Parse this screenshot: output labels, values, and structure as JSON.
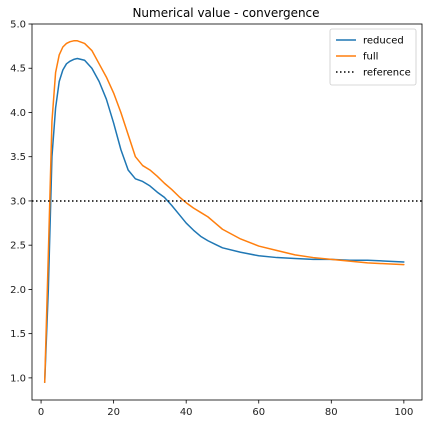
{
  "chart_data": {
    "type": "line",
    "title": "Numerical value - convergence",
    "xlabel": "",
    "ylabel": "",
    "xlim": [
      -2.5,
      105
    ],
    "ylim": [
      0.75,
      5.0
    ],
    "xticks": [
      0,
      20,
      40,
      60,
      80,
      100
    ],
    "yticks": [
      1.0,
      1.5,
      2.0,
      2.5,
      3.0,
      3.5,
      4.0,
      4.5,
      5.0
    ],
    "legend_position": "top-right",
    "grid": false,
    "series": [
      {
        "name": "reduced",
        "color": "#1f77b4",
        "style": "solid",
        "x": [
          1,
          2,
          3,
          4,
          5,
          6,
          7,
          8,
          9,
          10,
          12,
          14,
          16,
          18,
          20,
          22,
          24,
          26,
          28,
          30,
          32,
          34,
          36,
          38,
          40,
          42,
          44,
          46,
          48,
          50,
          55,
          60,
          65,
          70,
          75,
          80,
          85,
          90,
          95,
          100
        ],
        "values": [
          0.95,
          2.0,
          3.5,
          4.05,
          4.35,
          4.48,
          4.55,
          4.58,
          4.6,
          4.61,
          4.59,
          4.5,
          4.35,
          4.15,
          3.88,
          3.58,
          3.35,
          3.25,
          3.22,
          3.17,
          3.1,
          3.04,
          2.95,
          2.85,
          2.75,
          2.67,
          2.6,
          2.55,
          2.51,
          2.47,
          2.42,
          2.38,
          2.36,
          2.35,
          2.34,
          2.34,
          2.33,
          2.33,
          2.32,
          2.31
        ]
      },
      {
        "name": "full",
        "color": "#ff7f0e",
        "style": "solid",
        "x": [
          1,
          2,
          3,
          4,
          5,
          6,
          7,
          8,
          9,
          10,
          12,
          14,
          16,
          18,
          20,
          22,
          24,
          26,
          28,
          30,
          32,
          34,
          36,
          38,
          40,
          42,
          44,
          46,
          48,
          50,
          55,
          60,
          65,
          70,
          75,
          80,
          85,
          90,
          95,
          100
        ],
        "values": [
          0.95,
          2.4,
          3.9,
          4.45,
          4.65,
          4.74,
          4.78,
          4.8,
          4.81,
          4.81,
          4.78,
          4.7,
          4.55,
          4.4,
          4.22,
          4.0,
          3.75,
          3.5,
          3.4,
          3.35,
          3.28,
          3.2,
          3.13,
          3.05,
          2.98,
          2.92,
          2.87,
          2.82,
          2.75,
          2.68,
          2.57,
          2.49,
          2.44,
          2.39,
          2.36,
          2.34,
          2.32,
          2.3,
          2.29,
          2.28
        ]
      },
      {
        "name": "reference",
        "color": "#000000",
        "style": "dotted",
        "x": [
          -2.5,
          105
        ],
        "values": [
          3.0,
          3.0
        ]
      }
    ]
  }
}
